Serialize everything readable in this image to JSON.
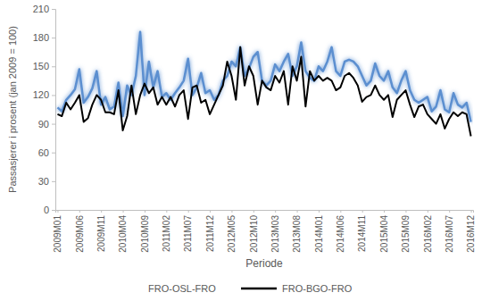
{
  "chart_data": {
    "type": "line",
    "x_label": "Periode",
    "y_label": "Passasjerer i prosent (jan 2009 = 100)",
    "categories": [
      "2009M01",
      null,
      null,
      null,
      null,
      "2009M06",
      null,
      null,
      null,
      null,
      "2009M11",
      null,
      null,
      null,
      null,
      "2010M04",
      null,
      null,
      null,
      null,
      "2010M09",
      null,
      null,
      null,
      null,
      "2011M02",
      null,
      null,
      null,
      null,
      "2011M07",
      null,
      null,
      null,
      null,
      "2011M12",
      null,
      null,
      null,
      null,
      "2012M05",
      null,
      null,
      null,
      null,
      "2012M10",
      null,
      null,
      null,
      null,
      "2013M03",
      null,
      null,
      null,
      null,
      "2013M08",
      null,
      null,
      null,
      null,
      "2014M01",
      null,
      null,
      null,
      null,
      "2014M06",
      null,
      null,
      null,
      null,
      "2014M11",
      null,
      null,
      null,
      null,
      "2015M04",
      null,
      null,
      null,
      null,
      "2015M09",
      null,
      null,
      null,
      null,
      "2016M02",
      null,
      null,
      null,
      null,
      "2016M07",
      null,
      null,
      null,
      null,
      "2016M12"
    ],
    "series": [
      {
        "name": "FRO-OSL-FRO",
        "color": "#5b8fd0",
        "values": [
          107,
          103,
          115,
          120,
          126,
          147,
          112,
          118,
          127,
          145,
          110,
          118,
          105,
          108,
          133,
          98,
          130,
          120,
          140,
          186,
          120,
          155,
          128,
          145,
          118,
          122,
          115,
          122,
          128,
          135,
          158,
          120,
          128,
          143,
          122,
          125,
          115,
          120,
          135,
          140,
          155,
          150,
          170,
          140,
          148,
          160,
          165,
          135,
          130,
          135,
          152,
          145,
          155,
          163,
          140,
          150,
          175,
          145,
          138,
          135,
          150,
          145,
          155,
          170,
          145,
          140,
          155,
          157,
          155,
          150,
          140,
          130,
          135,
          153,
          140,
          135,
          145,
          128,
          122,
          135,
          145,
          125,
          115,
          112,
          115,
          118,
          103,
          108,
          125,
          105,
          102,
          122,
          110,
          107,
          112,
          92
        ]
      },
      {
        "name": "FRO-BGO-FRO",
        "color": "#000000",
        "values": [
          100,
          98,
          112,
          105,
          112,
          120,
          92,
          96,
          110,
          120,
          115,
          102,
          102,
          100,
          125,
          83,
          98,
          130,
          100,
          120,
          132,
          122,
          128,
          110,
          118,
          110,
          118,
          108,
          120,
          125,
          95,
          128,
          130,
          112,
          115,
          100,
          110,
          120,
          130,
          155,
          140,
          115,
          170,
          130,
          150,
          140,
          110,
          135,
          128,
          125,
          140,
          133,
          145,
          110,
          150,
          135,
          160,
          108,
          145,
          135,
          140,
          135,
          138,
          135,
          125,
          128,
          140,
          143,
          138,
          130,
          113,
          118,
          120,
          130,
          120,
          115,
          120,
          97,
          115,
          120,
          125,
          110,
          97,
          108,
          110,
          100,
          95,
          90,
          100,
          85,
          95,
          102,
          98,
          102,
          100,
          77
        ]
      }
    ],
    "ylim": [
      0,
      210
    ],
    "yticks": [
      0,
      30,
      60,
      90,
      120,
      150,
      180,
      210
    ],
    "grid": false,
    "legend": "bottom"
  }
}
